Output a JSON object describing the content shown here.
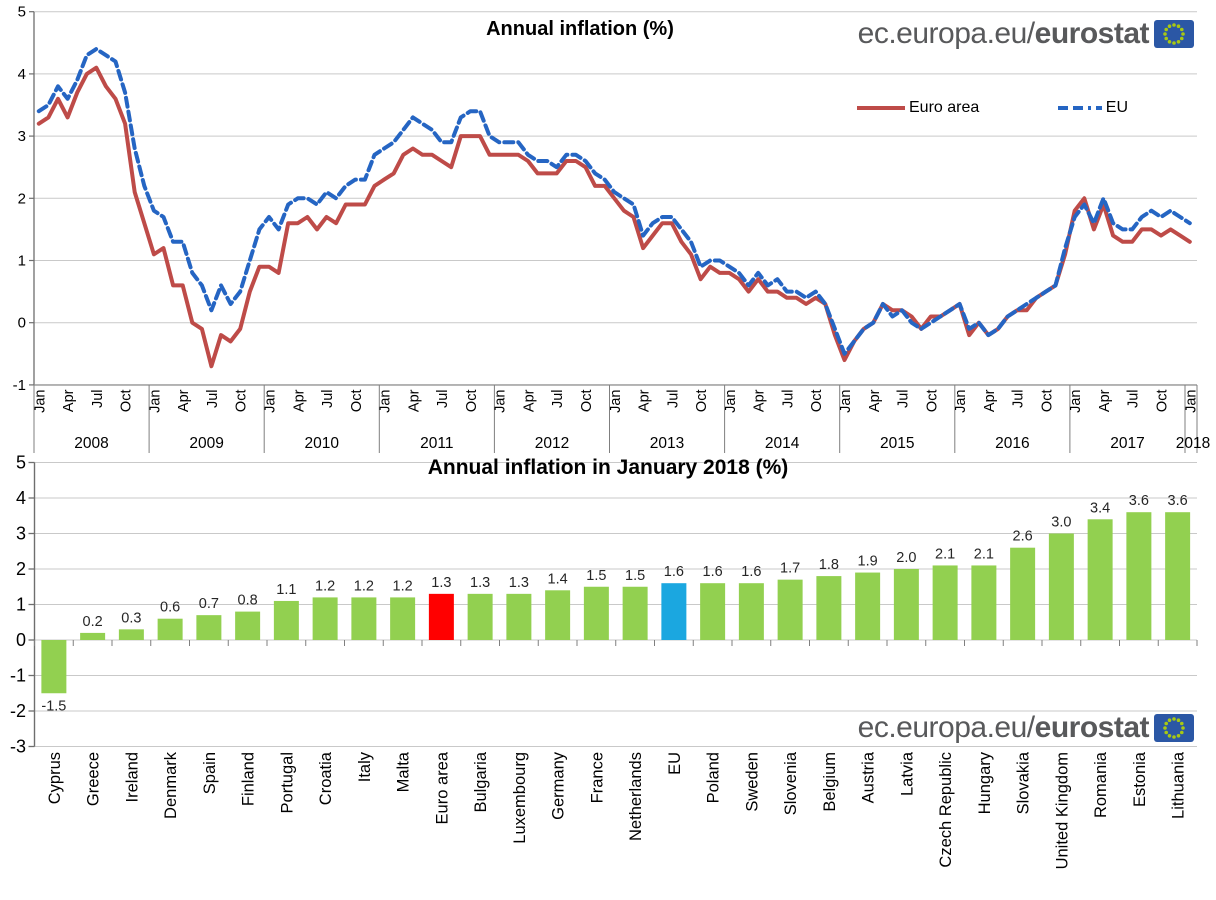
{
  "branding": {
    "url_prefix": "ec.europa.eu/",
    "url_bold": "eurostat"
  },
  "colors": {
    "euro_area_line": "#BE4B48",
    "eu_line": "#2565C3",
    "bar_green": "#92D050",
    "bar_red": "#FF0000",
    "bar_blue": "#1BA7E0",
    "grid": "#C9C9C9",
    "axis": "#6E6E6E",
    "tick_text": "#000000",
    "logo_gray": "#58595B",
    "flag_blue": "#2B57A5",
    "flag_stars": "#A8C813"
  },
  "chart_data": [
    {
      "type": "line",
      "title": "Annual inflation (%)",
      "ylabel": "",
      "xlabel": "",
      "ylim": [
        -1,
        5
      ],
      "yticks": [
        5,
        4,
        3,
        2,
        1,
        0,
        -1
      ],
      "grid": true,
      "legend_position": "top-right",
      "x_month_labels": [
        "Jan",
        "Apr",
        "Jul",
        "Oct"
      ],
      "years": [
        "2008",
        "2009",
        "2010",
        "2011",
        "2012",
        "2013",
        "2014",
        "2015",
        "2016",
        "2017"
      ],
      "end_year": "2018",
      "end_month_label": "Jan",
      "series": [
        {
          "name": "Euro area",
          "style": "solid",
          "color": "#BE4B48",
          "values": [
            3.2,
            3.3,
            3.6,
            3.3,
            3.7,
            4.0,
            4.1,
            3.8,
            3.6,
            3.2,
            2.1,
            1.6,
            1.1,
            1.2,
            0.6,
            0.6,
            0.0,
            -0.1,
            -0.7,
            -0.2,
            -0.3,
            -0.1,
            0.5,
            0.9,
            0.9,
            0.8,
            1.6,
            1.6,
            1.7,
            1.5,
            1.7,
            1.6,
            1.9,
            1.9,
            1.9,
            2.2,
            2.3,
            2.4,
            2.7,
            2.8,
            2.7,
            2.7,
            2.6,
            2.5,
            3.0,
            3.0,
            3.0,
            2.7,
            2.7,
            2.7,
            2.7,
            2.6,
            2.4,
            2.4,
            2.4,
            2.6,
            2.6,
            2.5,
            2.2,
            2.2,
            2.0,
            1.8,
            1.7,
            1.2,
            1.4,
            1.6,
            1.6,
            1.3,
            1.1,
            0.7,
            0.9,
            0.8,
            0.8,
            0.7,
            0.5,
            0.7,
            0.5,
            0.5,
            0.4,
            0.4,
            0.3,
            0.4,
            0.3,
            -0.2,
            -0.6,
            -0.3,
            -0.1,
            0.0,
            0.3,
            0.2,
            0.2,
            0.1,
            -0.1,
            0.1,
            0.1,
            0.2,
            0.3,
            -0.2,
            0.0,
            -0.2,
            -0.1,
            0.1,
            0.2,
            0.2,
            0.4,
            0.5,
            0.6,
            1.1,
            1.8,
            2.0,
            1.5,
            1.9,
            1.4,
            1.3,
            1.3,
            1.5,
            1.5,
            1.4,
            1.5,
            1.4,
            1.3
          ]
        },
        {
          "name": "EU",
          "style": "dashed",
          "color": "#2565C3",
          "values": [
            3.4,
            3.5,
            3.8,
            3.6,
            3.9,
            4.3,
            4.4,
            4.3,
            4.2,
            3.7,
            2.8,
            2.2,
            1.8,
            1.7,
            1.3,
            1.3,
            0.8,
            0.6,
            0.2,
            0.6,
            0.3,
            0.5,
            1.0,
            1.5,
            1.7,
            1.5,
            1.9,
            2.0,
            2.0,
            1.9,
            2.1,
            2.0,
            2.2,
            2.3,
            2.3,
            2.7,
            2.8,
            2.9,
            3.1,
            3.3,
            3.2,
            3.1,
            2.9,
            2.9,
            3.3,
            3.4,
            3.4,
            3.0,
            2.9,
            2.9,
            2.9,
            2.7,
            2.6,
            2.6,
            2.5,
            2.7,
            2.7,
            2.6,
            2.4,
            2.3,
            2.1,
            2.0,
            1.9,
            1.4,
            1.6,
            1.7,
            1.7,
            1.5,
            1.3,
            0.9,
            1.0,
            1.0,
            0.9,
            0.8,
            0.6,
            0.8,
            0.6,
            0.7,
            0.5,
            0.5,
            0.4,
            0.5,
            0.3,
            -0.1,
            -0.5,
            -0.3,
            -0.1,
            0.0,
            0.3,
            0.1,
            0.2,
            0.0,
            -0.1,
            0.0,
            0.1,
            0.2,
            0.3,
            -0.1,
            0.0,
            -0.2,
            -0.1,
            0.1,
            0.2,
            0.3,
            0.4,
            0.5,
            0.6,
            1.2,
            1.7,
            1.9,
            1.6,
            2.0,
            1.6,
            1.5,
            1.5,
            1.7,
            1.8,
            1.7,
            1.8,
            1.7,
            1.6
          ]
        }
      ]
    },
    {
      "type": "bar",
      "title": "Annual inflation in January 2018 (%)",
      "ylabel": "",
      "xlabel": "",
      "ylim": [
        -3,
        5
      ],
      "yticks": [
        5,
        4,
        3,
        2,
        1,
        0,
        -1,
        -2,
        -3
      ],
      "grid": true,
      "categories": [
        "Cyprus",
        "Greece",
        "Ireland",
        "Denmark",
        "Spain",
        "Finland",
        "Portugal",
        "Croatia",
        "Italy",
        "Malta",
        "Euro area",
        "Bulgaria",
        "Luxembourg",
        "Germany",
        "France",
        "Netherlands",
        "EU",
        "Poland",
        "Sweden",
        "Slovenia",
        "Belgium",
        "Austria",
        "Latvia",
        "Czech Republic",
        "Hungary",
        "Slovakia",
        "United Kingdom",
        "Romania",
        "Estonia",
        "Lithuania"
      ],
      "values": [
        -1.5,
        0.2,
        0.3,
        0.6,
        0.7,
        0.8,
        1.1,
        1.2,
        1.2,
        1.2,
        1.3,
        1.3,
        1.3,
        1.4,
        1.5,
        1.5,
        1.6,
        1.6,
        1.6,
        1.7,
        1.8,
        1.9,
        2.0,
        2.1,
        2.1,
        2.6,
        3.0,
        3.4,
        3.6,
        3.6
      ],
      "bar_colors": [
        "#92D050",
        "#92D050",
        "#92D050",
        "#92D050",
        "#92D050",
        "#92D050",
        "#92D050",
        "#92D050",
        "#92D050",
        "#92D050",
        "#FF0000",
        "#92D050",
        "#92D050",
        "#92D050",
        "#92D050",
        "#92D050",
        "#1BA7E0",
        "#92D050",
        "#92D050",
        "#92D050",
        "#92D050",
        "#92D050",
        "#92D050",
        "#92D050",
        "#92D050",
        "#92D050",
        "#92D050",
        "#92D050",
        "#92D050",
        "#92D050"
      ]
    }
  ]
}
